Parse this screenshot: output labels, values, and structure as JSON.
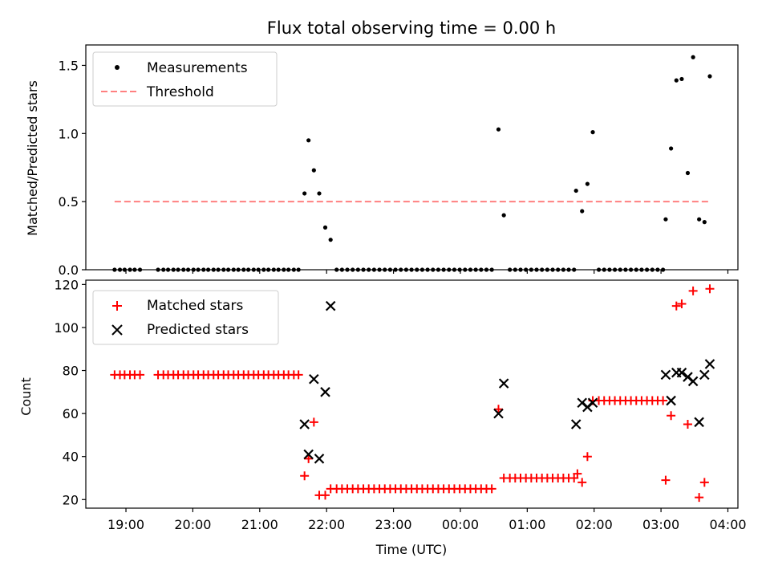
{
  "chart_data": [
    {
      "type": "scatter",
      "title": "Flux total observing time = 0.00 h",
      "ylabel": "Matched/Predicted stars",
      "xlabel": "",
      "x_axis": "time",
      "xlim": [
        18.4,
        28.15
      ],
      "ylim": [
        0,
        1.65
      ],
      "yticks": [
        0.0,
        0.5,
        1.0,
        1.5
      ],
      "ytick_labels": [
        "0.0",
        "0.5",
        "1.0",
        "1.5"
      ],
      "grid": false,
      "legend_position": "top-left",
      "legend": [
        "Measurements",
        "Threshold"
      ],
      "threshold": {
        "name": "Threshold",
        "y": 0.5,
        "x": [
          18.83,
          27.73
        ],
        "color": "#ff8080",
        "style": "dashed"
      },
      "series": [
        {
          "name": "Measurements",
          "color": "#000000",
          "marker": "dot",
          "points": [
            [
              18.83,
              0
            ],
            [
              18.91,
              0
            ],
            [
              18.98,
              0
            ],
            [
              19.06,
              0
            ],
            [
              19.13,
              0
            ],
            [
              19.21,
              0
            ],
            [
              19.48,
              0
            ],
            [
              19.56,
              0
            ],
            [
              19.63,
              0
            ],
            [
              19.71,
              0
            ],
            [
              19.78,
              0
            ],
            [
              19.86,
              0
            ],
            [
              19.93,
              0
            ],
            [
              20.01,
              0
            ],
            [
              20.08,
              0
            ],
            [
              20.16,
              0
            ],
            [
              20.23,
              0
            ],
            [
              20.31,
              0
            ],
            [
              20.38,
              0
            ],
            [
              20.46,
              0
            ],
            [
              20.53,
              0
            ],
            [
              20.61,
              0
            ],
            [
              20.68,
              0
            ],
            [
              20.76,
              0
            ],
            [
              20.83,
              0
            ],
            [
              20.91,
              0
            ],
            [
              20.98,
              0
            ],
            [
              21.06,
              0
            ],
            [
              21.13,
              0
            ],
            [
              21.21,
              0
            ],
            [
              21.28,
              0
            ],
            [
              21.36,
              0
            ],
            [
              21.43,
              0
            ],
            [
              21.51,
              0
            ],
            [
              21.58,
              0
            ],
            [
              21.67,
              0.56
            ],
            [
              21.73,
              0.95
            ],
            [
              21.81,
              0.73
            ],
            [
              21.89,
              0.56
            ],
            [
              21.98,
              0.31
            ],
            [
              22.06,
              0.22
            ],
            [
              22.15,
              0
            ],
            [
              22.23,
              0
            ],
            [
              22.31,
              0
            ],
            [
              22.39,
              0
            ],
            [
              22.47,
              0
            ],
            [
              22.55,
              0
            ],
            [
              22.63,
              0
            ],
            [
              22.71,
              0
            ],
            [
              22.79,
              0
            ],
            [
              22.87,
              0
            ],
            [
              22.95,
              0
            ],
            [
              23.03,
              0
            ],
            [
              23.11,
              0
            ],
            [
              23.19,
              0
            ],
            [
              23.27,
              0
            ],
            [
              23.35,
              0
            ],
            [
              23.43,
              0
            ],
            [
              23.51,
              0
            ],
            [
              23.59,
              0
            ],
            [
              23.67,
              0
            ],
            [
              23.75,
              0
            ],
            [
              23.83,
              0
            ],
            [
              23.91,
              0
            ],
            [
              23.99,
              0
            ],
            [
              24.07,
              0
            ],
            [
              24.15,
              0
            ],
            [
              24.23,
              0
            ],
            [
              24.31,
              0
            ],
            [
              24.39,
              0
            ],
            [
              24.47,
              0
            ],
            [
              24.57,
              1.03
            ],
            [
              24.65,
              0.4
            ],
            [
              24.74,
              0
            ],
            [
              24.82,
              0
            ],
            [
              24.9,
              0
            ],
            [
              24.98,
              0
            ],
            [
              25.06,
              0
            ],
            [
              25.14,
              0
            ],
            [
              25.22,
              0
            ],
            [
              25.3,
              0
            ],
            [
              25.38,
              0
            ],
            [
              25.46,
              0
            ],
            [
              25.54,
              0
            ],
            [
              25.62,
              0
            ],
            [
              25.7,
              0
            ],
            [
              25.73,
              0.58
            ],
            [
              25.82,
              0.43
            ],
            [
              25.9,
              0.63
            ],
            [
              25.98,
              1.01
            ],
            [
              26.07,
              0
            ],
            [
              26.15,
              0
            ],
            [
              26.23,
              0
            ],
            [
              26.31,
              0
            ],
            [
              26.39,
              0
            ],
            [
              26.47,
              0
            ],
            [
              26.55,
              0
            ],
            [
              26.63,
              0
            ],
            [
              26.71,
              0
            ],
            [
              26.79,
              0
            ],
            [
              26.87,
              0
            ],
            [
              26.95,
              0
            ],
            [
              27.03,
              0
            ],
            [
              27.07,
              0.37
            ],
            [
              27.15,
              0.89
            ],
            [
              27.23,
              1.39
            ],
            [
              27.31,
              1.4
            ],
            [
              27.4,
              0.71
            ],
            [
              27.48,
              1.56
            ],
            [
              27.57,
              0.37
            ],
            [
              27.65,
              0.35
            ],
            [
              27.73,
              1.42
            ]
          ]
        }
      ]
    },
    {
      "type": "scatter",
      "title": "",
      "ylabel": "Count",
      "xlabel": "Time (UTC)",
      "x_axis": "time",
      "xlim": [
        18.4,
        28.15
      ],
      "ylim": [
        16,
        122
      ],
      "yticks": [
        20,
        40,
        60,
        80,
        100,
        120
      ],
      "ytick_labels": [
        "20",
        "40",
        "60",
        "80",
        "100",
        "120"
      ],
      "xticks": [
        19,
        20,
        21,
        22,
        23,
        24,
        25,
        26,
        27,
        28
      ],
      "xtick_labels": [
        "19:00",
        "20:00",
        "21:00",
        "22:00",
        "23:00",
        "00:00",
        "01:00",
        "02:00",
        "03:00",
        "04:00"
      ],
      "grid": false,
      "legend_position": "top-left",
      "legend": [
        "Matched stars",
        "Predicted stars"
      ],
      "series": [
        {
          "name": "Matched stars",
          "color": "#ff0000",
          "marker": "plus",
          "points": [
            [
              18.83,
              78
            ],
            [
              18.91,
              78
            ],
            [
              18.98,
              78
            ],
            [
              19.06,
              78
            ],
            [
              19.13,
              78
            ],
            [
              19.21,
              78
            ],
            [
              19.48,
              78
            ],
            [
              19.56,
              78
            ],
            [
              19.63,
              78
            ],
            [
              19.71,
              78
            ],
            [
              19.78,
              78
            ],
            [
              19.86,
              78
            ],
            [
              19.93,
              78
            ],
            [
              20.01,
              78
            ],
            [
              20.08,
              78
            ],
            [
              20.16,
              78
            ],
            [
              20.23,
              78
            ],
            [
              20.31,
              78
            ],
            [
              20.38,
              78
            ],
            [
              20.46,
              78
            ],
            [
              20.53,
              78
            ],
            [
              20.61,
              78
            ],
            [
              20.68,
              78
            ],
            [
              20.76,
              78
            ],
            [
              20.83,
              78
            ],
            [
              20.91,
              78
            ],
            [
              20.98,
              78
            ],
            [
              21.06,
              78
            ],
            [
              21.13,
              78
            ],
            [
              21.21,
              78
            ],
            [
              21.28,
              78
            ],
            [
              21.36,
              78
            ],
            [
              21.43,
              78
            ],
            [
              21.51,
              78
            ],
            [
              21.58,
              78
            ],
            [
              21.67,
              31
            ],
            [
              21.73,
              39
            ],
            [
              21.81,
              56
            ],
            [
              21.89,
              22
            ],
            [
              21.98,
              22
            ],
            [
              22.06,
              25
            ],
            [
              22.15,
              25
            ],
            [
              22.23,
              25
            ],
            [
              22.31,
              25
            ],
            [
              22.39,
              25
            ],
            [
              22.47,
              25
            ],
            [
              22.55,
              25
            ],
            [
              22.63,
              25
            ],
            [
              22.71,
              25
            ],
            [
              22.79,
              25
            ],
            [
              22.87,
              25
            ],
            [
              22.95,
              25
            ],
            [
              23.03,
              25
            ],
            [
              23.11,
              25
            ],
            [
              23.19,
              25
            ],
            [
              23.27,
              25
            ],
            [
              23.35,
              25
            ],
            [
              23.43,
              25
            ],
            [
              23.51,
              25
            ],
            [
              23.59,
              25
            ],
            [
              23.67,
              25
            ],
            [
              23.75,
              25
            ],
            [
              23.83,
              25
            ],
            [
              23.91,
              25
            ],
            [
              23.99,
              25
            ],
            [
              24.07,
              25
            ],
            [
              24.15,
              25
            ],
            [
              24.23,
              25
            ],
            [
              24.31,
              25
            ],
            [
              24.39,
              25
            ],
            [
              24.47,
              25
            ],
            [
              24.57,
              62
            ],
            [
              24.65,
              30
            ],
            [
              24.74,
              30
            ],
            [
              24.82,
              30
            ],
            [
              24.9,
              30
            ],
            [
              24.98,
              30
            ],
            [
              25.06,
              30
            ],
            [
              25.14,
              30
            ],
            [
              25.22,
              30
            ],
            [
              25.3,
              30
            ],
            [
              25.38,
              30
            ],
            [
              25.46,
              30
            ],
            [
              25.54,
              30
            ],
            [
              25.62,
              30
            ],
            [
              25.7,
              30
            ],
            [
              25.75,
              32
            ],
            [
              25.82,
              28
            ],
            [
              25.9,
              40
            ],
            [
              25.98,
              66
            ],
            [
              26.07,
              66
            ],
            [
              26.15,
              66
            ],
            [
              26.23,
              66
            ],
            [
              26.31,
              66
            ],
            [
              26.39,
              66
            ],
            [
              26.47,
              66
            ],
            [
              26.55,
              66
            ],
            [
              26.63,
              66
            ],
            [
              26.71,
              66
            ],
            [
              26.79,
              66
            ],
            [
              26.87,
              66
            ],
            [
              26.95,
              66
            ],
            [
              27.03,
              66
            ],
            [
              27.07,
              29
            ],
            [
              27.15,
              59
            ],
            [
              27.23,
              110
            ],
            [
              27.31,
              111
            ],
            [
              27.4,
              55
            ],
            [
              27.48,
              117
            ],
            [
              27.57,
              21
            ],
            [
              27.65,
              28
            ],
            [
              27.73,
              118
            ]
          ]
        },
        {
          "name": "Predicted stars",
          "color": "#000000",
          "marker": "x",
          "points": [
            [
              21.67,
              55
            ],
            [
              21.73,
              41
            ],
            [
              21.81,
              76
            ],
            [
              21.89,
              39
            ],
            [
              21.98,
              70
            ],
            [
              22.06,
              110
            ],
            [
              24.57,
              60
            ],
            [
              24.65,
              74
            ],
            [
              25.73,
              55
            ],
            [
              25.82,
              65
            ],
            [
              25.9,
              63
            ],
            [
              25.98,
              65
            ],
            [
              27.07,
              78
            ],
            [
              27.15,
              66
            ],
            [
              27.23,
              79
            ],
            [
              27.31,
              79
            ],
            [
              27.4,
              77
            ],
            [
              27.48,
              75
            ],
            [
              27.57,
              56
            ],
            [
              27.65,
              78
            ],
            [
              27.73,
              83
            ]
          ]
        }
      ]
    }
  ]
}
